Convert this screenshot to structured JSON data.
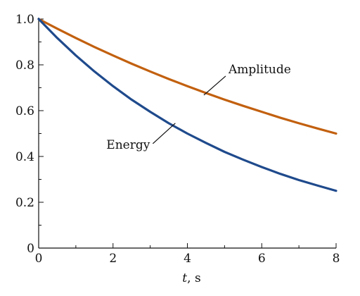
{
  "chart_data": {
    "type": "line",
    "xlabel_italic": "t",
    "xlabel_unit": ", s",
    "ylabel": "",
    "xlim": [
      0,
      8
    ],
    "ylim": [
      0,
      1.0
    ],
    "x_ticks_major": [
      0,
      2,
      4,
      6,
      8
    ],
    "x_tick_labels": [
      "0",
      "2",
      "4",
      "6",
      "8"
    ],
    "x_ticks_minor": [
      1,
      3,
      5,
      7
    ],
    "y_ticks_major": [
      0,
      0.2,
      0.4,
      0.6,
      0.8,
      1.0
    ],
    "y_tick_labels": [
      "0",
      "0.2",
      "0.4",
      "0.6",
      "0.8",
      "1.0"
    ],
    "y_ticks_minor": [
      0.1,
      0.3,
      0.5,
      0.7,
      0.9
    ],
    "grid": false,
    "x": [
      0,
      0.5,
      1,
      1.5,
      2,
      2.5,
      3,
      3.5,
      4,
      4.5,
      5,
      5.5,
      6,
      6.5,
      7,
      7.5,
      8
    ],
    "series": [
      {
        "name": "Amplitude",
        "color": "#c2600f",
        "values": [
          1.0,
          0.958,
          0.917,
          0.878,
          0.841,
          0.805,
          0.771,
          0.738,
          0.707,
          0.677,
          0.648,
          0.621,
          0.595,
          0.569,
          0.545,
          0.522,
          0.5
        ]
      },
      {
        "name": "Energy",
        "color": "#1f4a8c",
        "values": [
          1.0,
          0.917,
          0.841,
          0.771,
          0.707,
          0.648,
          0.595,
          0.545,
          0.5,
          0.459,
          0.42,
          0.386,
          0.354,
          0.324,
          0.297,
          0.273,
          0.25
        ]
      }
    ],
    "annotations": [
      {
        "text": "Amplitude",
        "series": "Amplitude",
        "at_x": 4.5
      },
      {
        "text": "Energy",
        "series": "Energy",
        "at_x": 3.6
      }
    ]
  }
}
